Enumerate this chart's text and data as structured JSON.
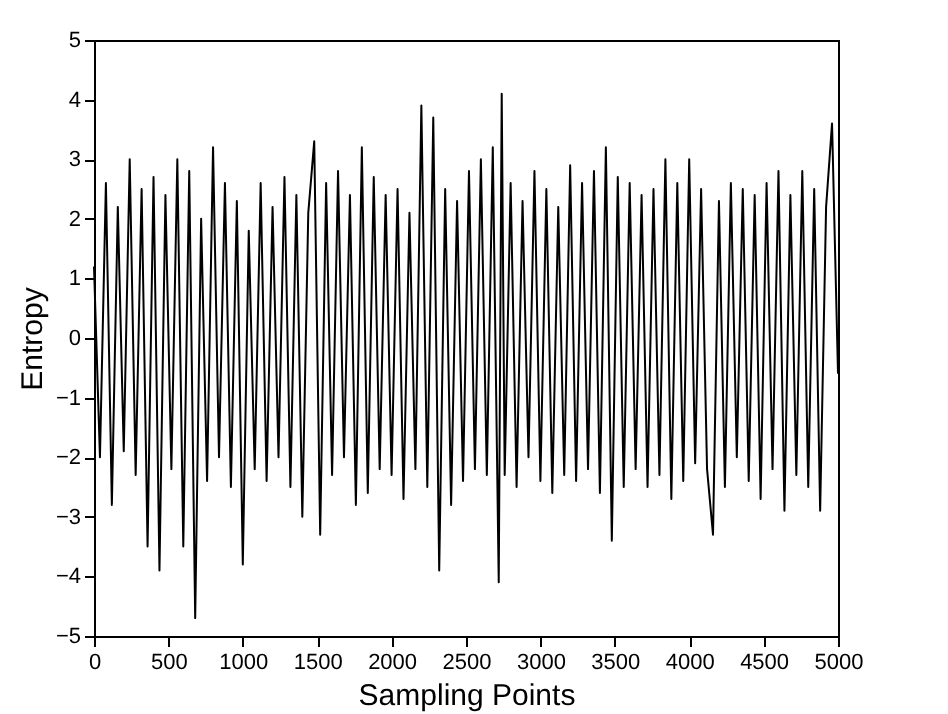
{
  "chart_data": {
    "type": "line",
    "xlabel": "Sampling Points",
    "ylabel": "Entropy",
    "x": [
      0,
      40,
      80,
      120,
      160,
      200,
      240,
      280,
      320,
      360,
      400,
      440,
      480,
      520,
      560,
      600,
      640,
      680,
      720,
      760,
      800,
      840,
      880,
      920,
      960,
      1000,
      1040,
      1080,
      1120,
      1160,
      1200,
      1240,
      1280,
      1320,
      1360,
      1400,
      1440,
      1480,
      1520,
      1560,
      1600,
      1640,
      1680,
      1720,
      1760,
      1800,
      1840,
      1880,
      1920,
      1960,
      2000,
      2040,
      2080,
      2120,
      2160,
      2200,
      2240,
      2280,
      2320,
      2360,
      2400,
      2440,
      2480,
      2520,
      2560,
      2600,
      2640,
      2680,
      2720,
      2740,
      2760,
      2800,
      2840,
      2880,
      2920,
      2960,
      3000,
      3040,
      3080,
      3120,
      3160,
      3200,
      3240,
      3280,
      3320,
      3360,
      3400,
      3440,
      3480,
      3520,
      3560,
      3600,
      3640,
      3680,
      3720,
      3760,
      3800,
      3840,
      3880,
      3920,
      3960,
      4000,
      4040,
      4080,
      4120,
      4160,
      4200,
      4240,
      4280,
      4320,
      4360,
      4400,
      4440,
      4480,
      4520,
      4560,
      4600,
      4640,
      4680,
      4720,
      4760,
      4800,
      4840,
      4880,
      4920,
      4960,
      5000
    ],
    "series": [
      {
        "color": "#000000",
        "values": [
          1.2,
          -2.0,
          2.6,
          -2.8,
          2.2,
          -1.9,
          3.0,
          -2.3,
          2.5,
          -3.5,
          2.7,
          -3.9,
          2.4,
          -2.2,
          3.0,
          -3.5,
          2.8,
          -4.7,
          2.0,
          -2.4,
          3.2,
          -2.0,
          2.6,
          -2.5,
          2.3,
          -3.8,
          1.8,
          -2.2,
          2.6,
          -2.4,
          2.2,
          -2.0,
          2.7,
          -2.5,
          2.4,
          -3.0,
          2.1,
          3.3,
          -3.3,
          2.6,
          -2.3,
          2.8,
          -2.0,
          2.4,
          -2.8,
          3.2,
          -2.6,
          2.7,
          -2.2,
          2.4,
          -2.3,
          2.5,
          -2.7,
          2.1,
          -2.2,
          3.9,
          -2.5,
          3.7,
          -3.9,
          2.5,
          -2.8,
          2.3,
          -2.4,
          2.8,
          -2.2,
          3.0,
          -2.3,
          3.2,
          -4.1,
          4.1,
          -2.3,
          2.6,
          -2.5,
          2.3,
          -2.0,
          2.8,
          -2.4,
          2.5,
          -2.6,
          2.2,
          -2.3,
          2.9,
          -2.4,
          2.6,
          -2.2,
          2.8,
          -2.6,
          3.2,
          -3.4,
          2.7,
          -2.5,
          2.6,
          -2.2,
          2.4,
          -2.5,
          2.5,
          -2.3,
          3.0,
          -2.7,
          2.6,
          -2.4,
          3.0,
          -2.1,
          2.5,
          -2.2,
          -3.3,
          2.3,
          -2.5,
          2.6,
          -2.0,
          2.5,
          -2.4,
          2.4,
          -2.7,
          2.6,
          -2.2,
          2.8,
          -2.9,
          2.4,
          -2.3,
          2.8,
          -2.5,
          2.5,
          -2.9,
          2.2,
          3.6,
          -0.6
        ]
      }
    ],
    "xlim": [
      0,
      5000
    ],
    "xticks": [
      0,
      500,
      1000,
      1500,
      2000,
      2500,
      3000,
      3500,
      4000,
      4500,
      5000
    ],
    "ylim": [
      -5,
      5
    ],
    "yticks": [
      -5,
      -4,
      -3,
      -2,
      -1,
      0,
      1,
      2,
      3,
      4,
      5
    ],
    "grid": false,
    "line_style": "solid",
    "marker": "none"
  }
}
